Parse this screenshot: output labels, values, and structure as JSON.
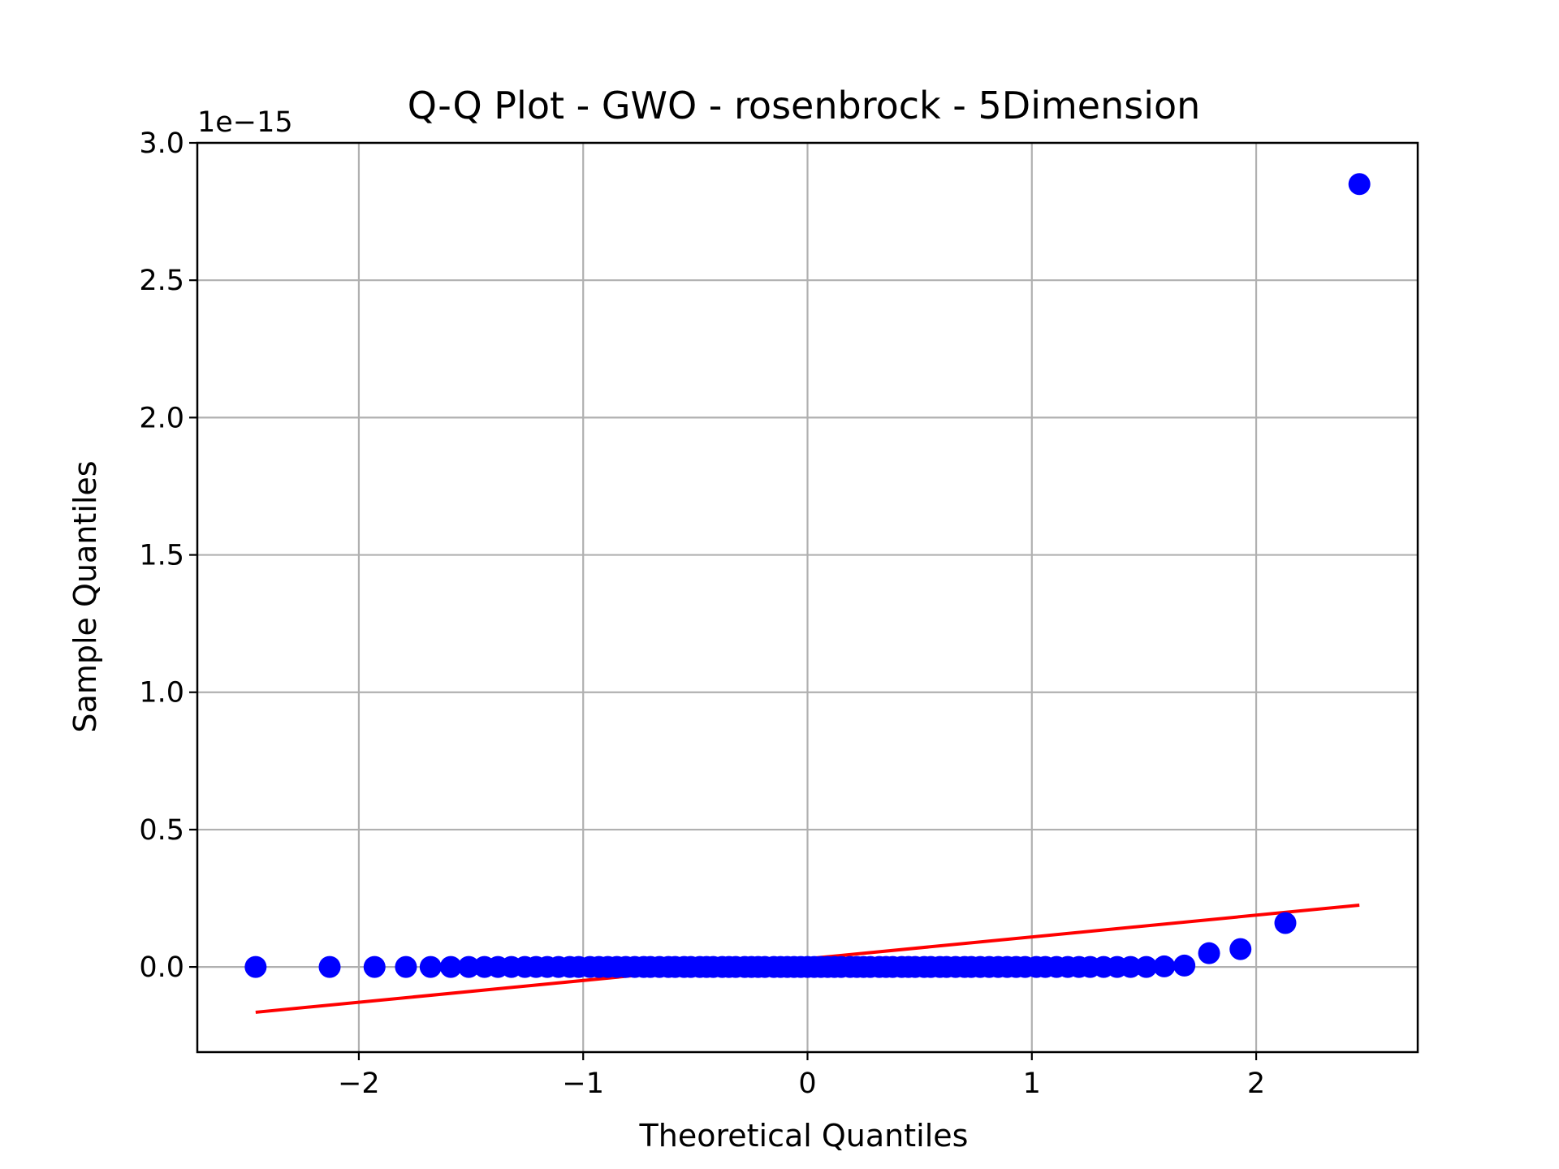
{
  "chart_data": {
    "type": "scatter",
    "title": "Q-Q Plot - GWO - rosenbrock - 5Dimension",
    "xlabel": "Theoretical Quantiles",
    "ylabel": "Sample Quantiles",
    "y_offset_label": "1e−15",
    "xlim": [
      -2.72,
      2.72
    ],
    "ylim": [
      -0.31,
      3.0
    ],
    "xticks": [
      -2,
      -1,
      0,
      1,
      2
    ],
    "xtick_labels": [
      "−2",
      "−1",
      "0",
      "1",
      "2"
    ],
    "yticks": [
      0.0,
      0.5,
      1.0,
      1.5,
      2.0,
      2.5,
      3.0
    ],
    "ytick_labels": [
      "0.0",
      "0.5",
      "1.0",
      "1.5",
      "2.0",
      "2.5",
      "3.0"
    ],
    "grid": true,
    "y_units": "1e-15",
    "series": [
      {
        "color": "#0000ff",
        "x": [
          -2.46,
          -2.13,
          -1.93,
          -1.79,
          -1.68,
          -1.59,
          -1.51,
          -1.44,
          -1.38,
          -1.32,
          -1.26,
          -1.21,
          -1.16,
          -1.11,
          -1.06,
          -1.02,
          -0.97,
          -0.93,
          -0.89,
          -0.85,
          -0.81,
          -0.77,
          -0.73,
          -0.7,
          -0.66,
          -0.62,
          -0.59,
          -0.55,
          -0.52,
          -0.48,
          -0.45,
          -0.42,
          -0.38,
          -0.35,
          -0.32,
          -0.28,
          -0.25,
          -0.22,
          -0.19,
          -0.15,
          -0.12,
          -0.09,
          -0.06,
          -0.03,
          0.0,
          0.03,
          0.06,
          0.09,
          0.12,
          0.15,
          0.19,
          0.22,
          0.25,
          0.28,
          0.32,
          0.35,
          0.38,
          0.42,
          0.45,
          0.48,
          0.52,
          0.55,
          0.59,
          0.62,
          0.66,
          0.7,
          0.73,
          0.77,
          0.81,
          0.85,
          0.89,
          0.93,
          0.97,
          1.02,
          1.06,
          1.11,
          1.16,
          1.21,
          1.26,
          1.32,
          1.38,
          1.44,
          1.51,
          1.59,
          1.68,
          1.79,
          1.93,
          2.13,
          2.46
        ],
        "y": [
          0.0,
          0.0,
          0.0,
          0.0,
          0.0,
          0.0,
          0.0,
          0.0,
          0.0,
          0.0,
          0.0,
          0.0,
          0.0,
          0.0,
          0.0,
          0.0,
          0.0,
          0.0,
          0.0,
          0.0,
          0.0,
          0.0,
          0.0,
          0.0,
          0.0,
          0.0,
          0.0,
          0.0,
          0.0,
          0.0,
          0.0,
          0.0,
          0.0,
          0.0,
          0.0,
          0.0,
          0.0,
          0.0,
          0.0,
          0.0,
          0.0,
          0.0,
          0.0,
          0.0,
          0.0,
          0.0,
          0.0,
          0.0,
          0.0,
          0.0,
          0.0,
          0.0,
          0.0,
          0.0,
          0.0,
          0.0,
          0.0,
          0.0,
          0.0,
          0.0,
          0.0,
          0.0,
          0.0,
          0.0,
          0.0,
          0.0,
          0.0,
          0.0,
          0.0,
          0.0,
          0.0,
          0.0,
          0.0,
          0.0,
          0.0,
          0.0,
          0.0,
          0.0,
          0.0,
          0.0,
          0.0,
          0.0,
          0.0,
          0.002,
          0.005,
          0.05,
          0.065,
          0.16,
          2.85
        ]
      }
    ],
    "reference_line": {
      "color": "#ff0000",
      "x": [
        -2.46,
        2.46
      ],
      "y": [
        -0.165,
        0.225
      ]
    }
  }
}
